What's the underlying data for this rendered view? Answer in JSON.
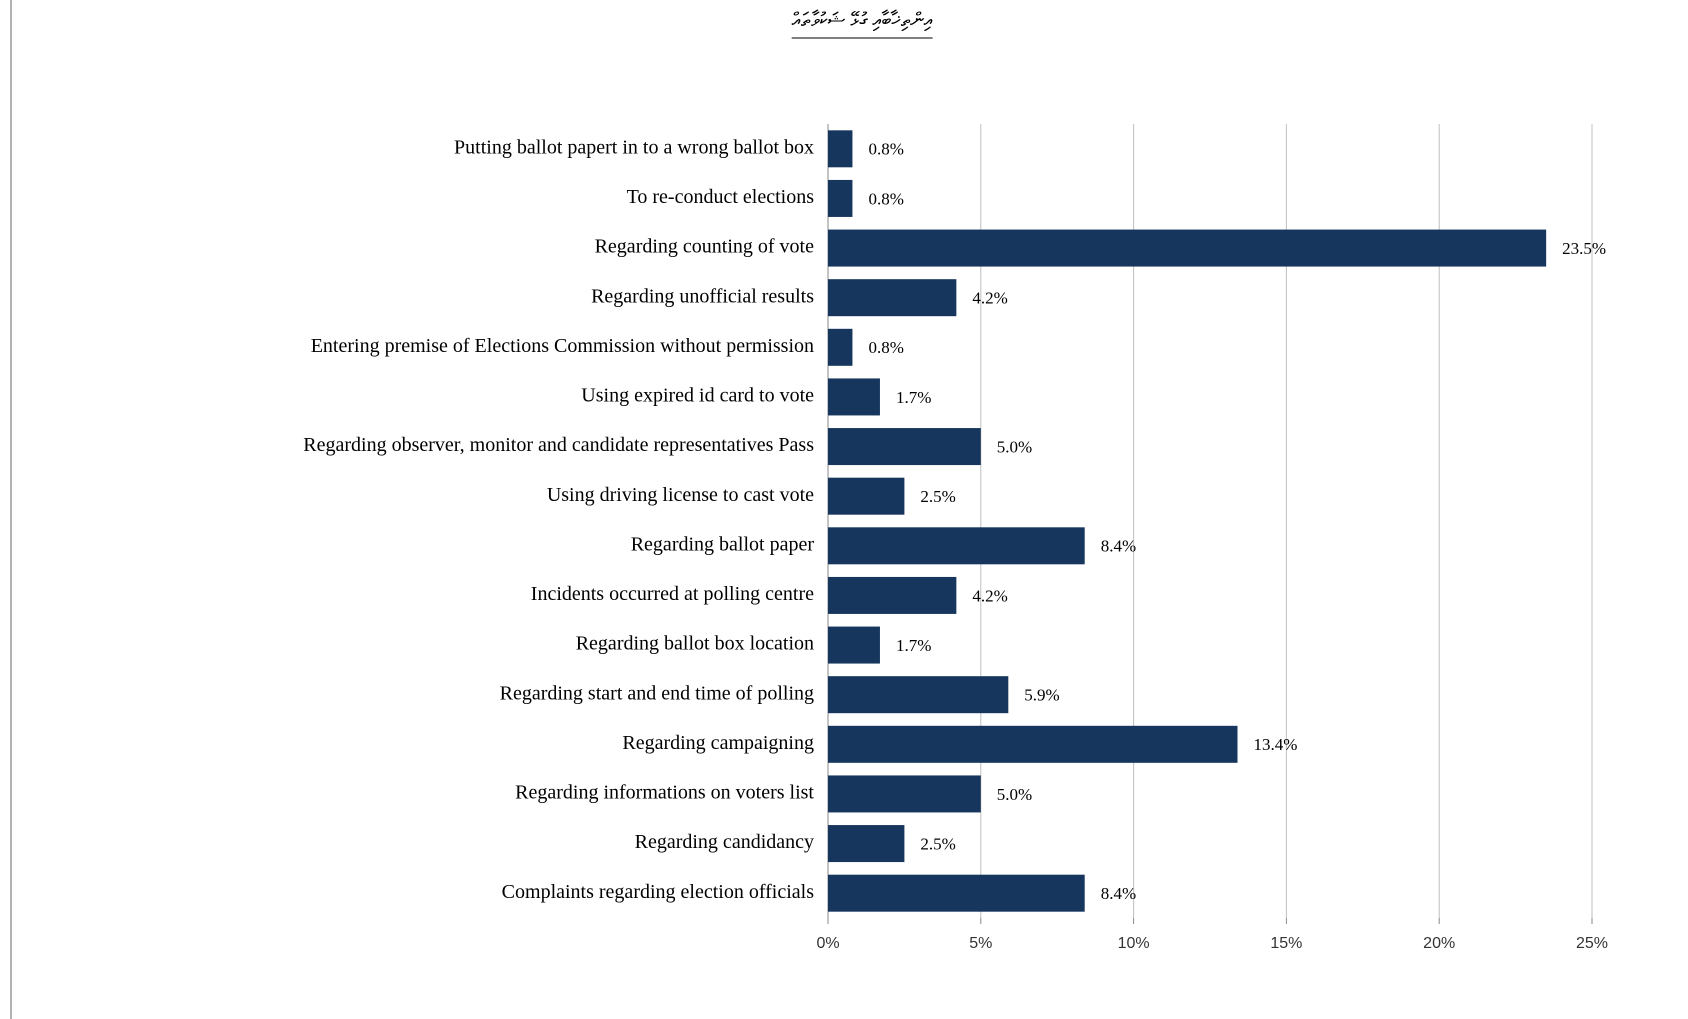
{
  "chart_data": {
    "type": "barh",
    "title": "އިންތިޚާބާއި ގުޅޭ ޝަކުވާތައް",
    "categories": [
      "Putting ballot papert in to a wrong ballot box",
      "To re-conduct elections",
      "Regarding counting of vote",
      "Regarding unofficial results",
      "Entering premise of Elections Commission without permission",
      "Using expired id card to vote",
      "Regarding observer, monitor and candidate representatives Pass",
      "Using driving license to cast vote",
      "Regarding ballot paper",
      "Incidents occurred at polling centre",
      "Regarding ballot box location",
      "Regarding start and end time of polling",
      "Regarding campaigning",
      "Regarding informations on voters list",
      "Regarding candidancy",
      "Complaints regarding election officials"
    ],
    "values": [
      0.8,
      0.8,
      23.5,
      4.2,
      0.8,
      1.7,
      5.0,
      2.5,
      8.4,
      4.2,
      1.7,
      5.9,
      13.4,
      5.0,
      2.5,
      8.4
    ],
    "value_labels": [
      "0.8%",
      "0.8%",
      "23.5%",
      "4.2%",
      "0.8%",
      "1.7%",
      "5.0%",
      "2.5%",
      "8.4%",
      "4.2%",
      "1.7%",
      "5.9%",
      "13.4%",
      "5.0%",
      "2.5%",
      "8.4%"
    ],
    "color": "#17365d",
    "xlim": [
      0,
      25
    ],
    "xticks": [
      {
        "value": 0,
        "label": "0%"
      },
      {
        "value": 5,
        "label": "5%"
      },
      {
        "value": 10,
        "label": "10%"
      },
      {
        "value": 15,
        "label": "15%"
      },
      {
        "value": 20,
        "label": "20%"
      },
      {
        "value": 25,
        "label": "25%"
      }
    ],
    "grid": true
  }
}
